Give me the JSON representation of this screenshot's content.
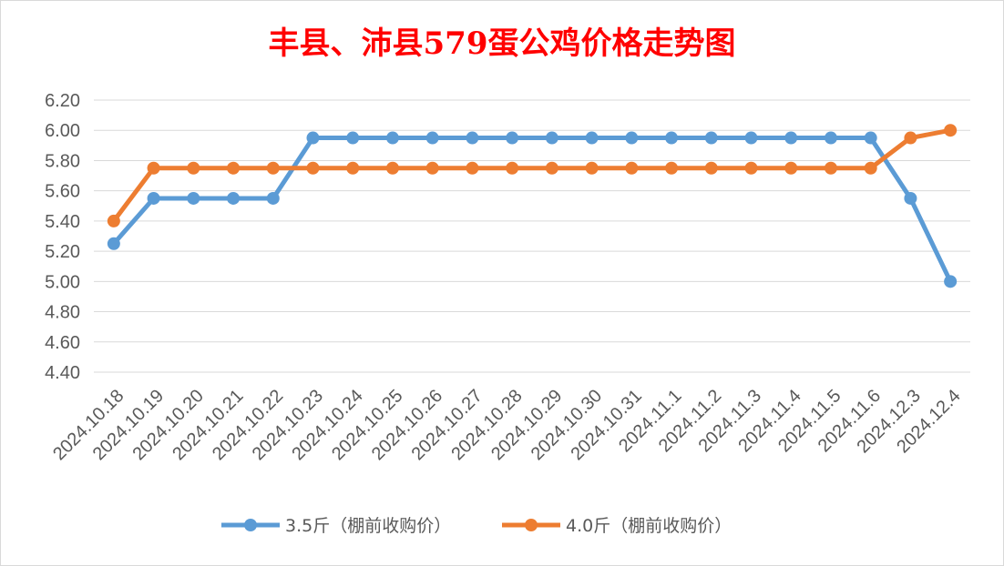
{
  "chart_data": {
    "type": "line",
    "title": "丰县、沛县579蛋公鸡价格走势图",
    "categories": [
      "2024.10.18",
      "2024.10.19",
      "2024.10.20",
      "2024.10.21",
      "2024.10.22",
      "2024.10.23",
      "2024.10.24",
      "2024.10.25",
      "2024.10.26",
      "2024.10.27",
      "2024.10.28",
      "2024.10.29",
      "2024.10.30",
      "2024.10.31",
      "2024.11.1",
      "2024.11.2",
      "2024.11.3",
      "2024.11.4",
      "2024.11.5",
      "2024.11.6",
      "2024.12.3",
      "2024.12.4"
    ],
    "yticks": [
      "4.40",
      "4.60",
      "4.80",
      "5.00",
      "5.20",
      "5.40",
      "5.60",
      "5.80",
      "6.00",
      "6.20"
    ],
    "ylim": [
      4.4,
      6.2
    ],
    "grid": true,
    "legend_position": "bottom",
    "series": [
      {
        "name": "3.5斤（棚前收购价）",
        "color": "#5b9bd5",
        "values": [
          5.25,
          5.55,
          5.55,
          5.55,
          5.55,
          5.95,
          5.95,
          5.95,
          5.95,
          5.95,
          5.95,
          5.95,
          5.95,
          5.95,
          5.95,
          5.95,
          5.95,
          5.95,
          5.95,
          5.95,
          5.55,
          5.0
        ]
      },
      {
        "name": "4.0斤（棚前收购价）",
        "color": "#ed7d31",
        "values": [
          5.4,
          5.75,
          5.75,
          5.75,
          5.75,
          5.75,
          5.75,
          5.75,
          5.75,
          5.75,
          5.75,
          5.75,
          5.75,
          5.75,
          5.75,
          5.75,
          5.75,
          5.75,
          5.75,
          5.75,
          5.95,
          6.0
        ]
      }
    ]
  }
}
